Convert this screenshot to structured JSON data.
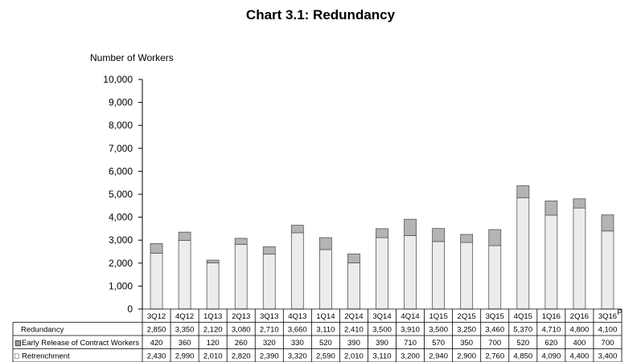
{
  "chart_data": {
    "type": "bar",
    "stacked": true,
    "title": "Chart 3.1: Redundancy",
    "ylabel": "Number of Workers",
    "ylim": [
      0,
      10000
    ],
    "yticks": [
      "0",
      "1,000",
      "2,000",
      "3,000",
      "4,000",
      "5,000",
      "6,000",
      "7,000",
      "8,000",
      "9,000",
      "10,000"
    ],
    "categories": [
      "3Q12",
      "4Q12",
      "1Q13",
      "2Q13",
      "3Q13",
      "4Q13",
      "1Q14",
      "2Q14",
      "3Q14",
      "4Q14",
      "1Q15",
      "2Q15",
      "3Q15",
      "4Q15",
      "1Q16",
      "2Q16",
      "3Q16"
    ],
    "last_category_superscript": "P",
    "grid": false,
    "legend": "table-rows-below",
    "table": {
      "rows": [
        {
          "label": "Redundancy",
          "marker": "",
          "cells": [
            "2,850",
            "3,350",
            "2,120",
            "3,080",
            "2,710",
            "3,660",
            "3,110",
            "2,410",
            "3,500",
            "3,910",
            "3,500",
            "3,250",
            "3,460",
            "5,370",
            "4,710",
            "4,800",
            "4,100"
          ]
        },
        {
          "label": "Early Release of Contract Workers",
          "marker": "▨",
          "cells": [
            "420",
            "360",
            "120",
            "260",
            "320",
            "330",
            "520",
            "390",
            "390",
            "710",
            "570",
            "350",
            "700",
            "520",
            "620",
            "400",
            "700"
          ]
        },
        {
          "label": "Retrenchment",
          "marker": "□",
          "cells": [
            "2,430",
            "2,990",
            "2,010",
            "2,820",
            "2,390",
            "3,320",
            "2,590",
            "2,010",
            "3,110",
            "3,200",
            "2,940",
            "2,900",
            "2,760",
            "4,850",
            "4,090",
            "4,400",
            "3,400"
          ]
        }
      ]
    },
    "series": [
      {
        "name": "Retrenchment",
        "color": "#ececec",
        "values": [
          2430,
          2990,
          2010,
          2820,
          2390,
          3320,
          2590,
          2010,
          3110,
          3200,
          2940,
          2900,
          2760,
          4850,
          4090,
          4400,
          3400
        ]
      },
      {
        "name": "Early Release of Contract Workers",
        "color": "#b4b4b4",
        "values": [
          420,
          360,
          120,
          260,
          320,
          330,
          520,
          390,
          390,
          710,
          570,
          350,
          700,
          520,
          620,
          400,
          700
        ]
      }
    ]
  }
}
